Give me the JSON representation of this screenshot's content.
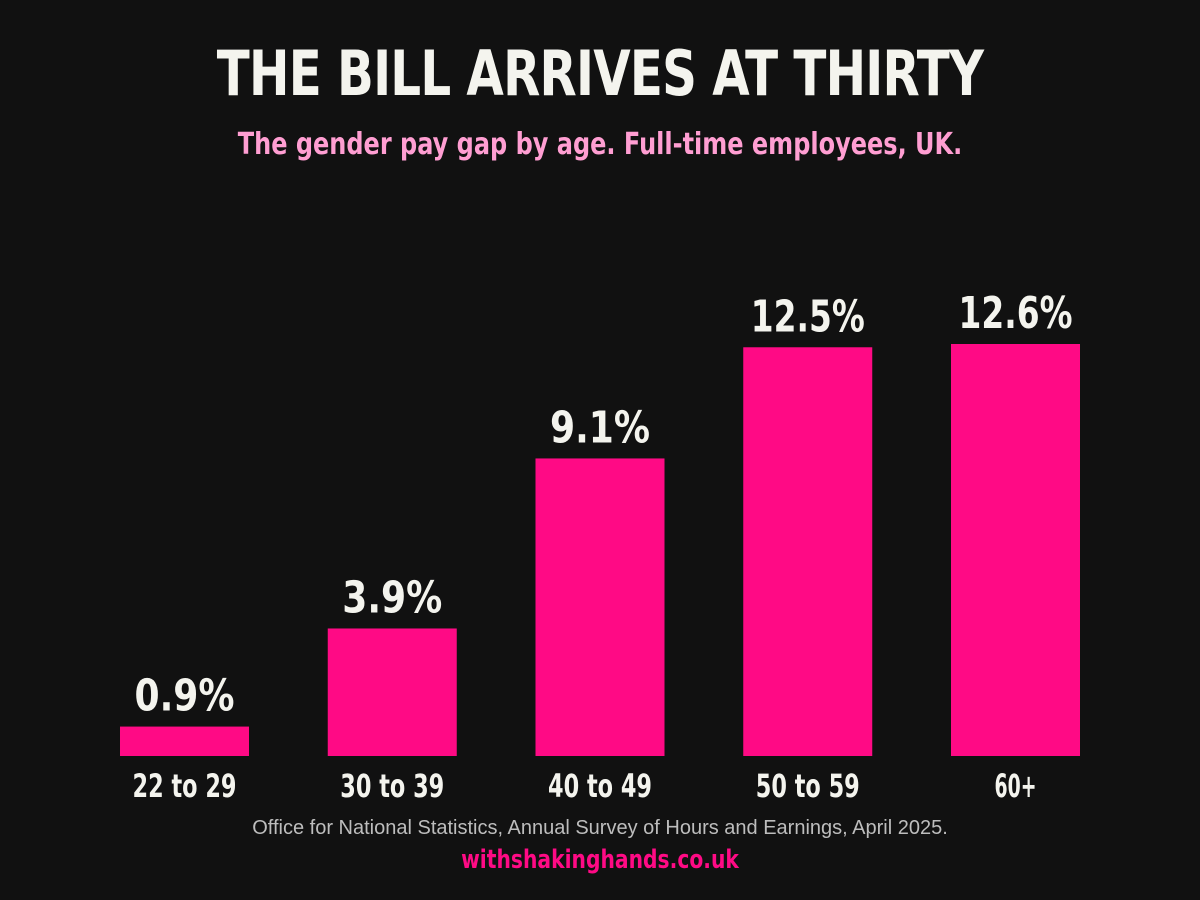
{
  "chart_data": {
    "type": "bar",
    "title": "THE BILL ARRIVES AT THIRTY",
    "subtitle": "The gender pay gap by age. Full-time employees, UK.",
    "categories": [
      "22 to 29",
      "30 to 39",
      "40 to 49",
      "50 to 59",
      "60+"
    ],
    "values": [
      0.9,
      3.9,
      9.1,
      12.5,
      12.6
    ],
    "value_labels": [
      "0.9%",
      "3.9%",
      "9.1%",
      "12.5%",
      "12.6%"
    ],
    "unit": "%",
    "ylim": [
      0,
      12.6
    ],
    "grid": false,
    "legend": "none",
    "bar_color": "#ff0a85",
    "background_color": "#111111"
  },
  "footer": {
    "source": "Office for National Statistics, Annual Survey of Hours and Earnings, April 2025.",
    "credit": "withshakinghands.co.uk"
  },
  "colors": {
    "title": "#f4f4ee",
    "subtitle": "#ff9ed2",
    "credit": "#ff0a85"
  }
}
